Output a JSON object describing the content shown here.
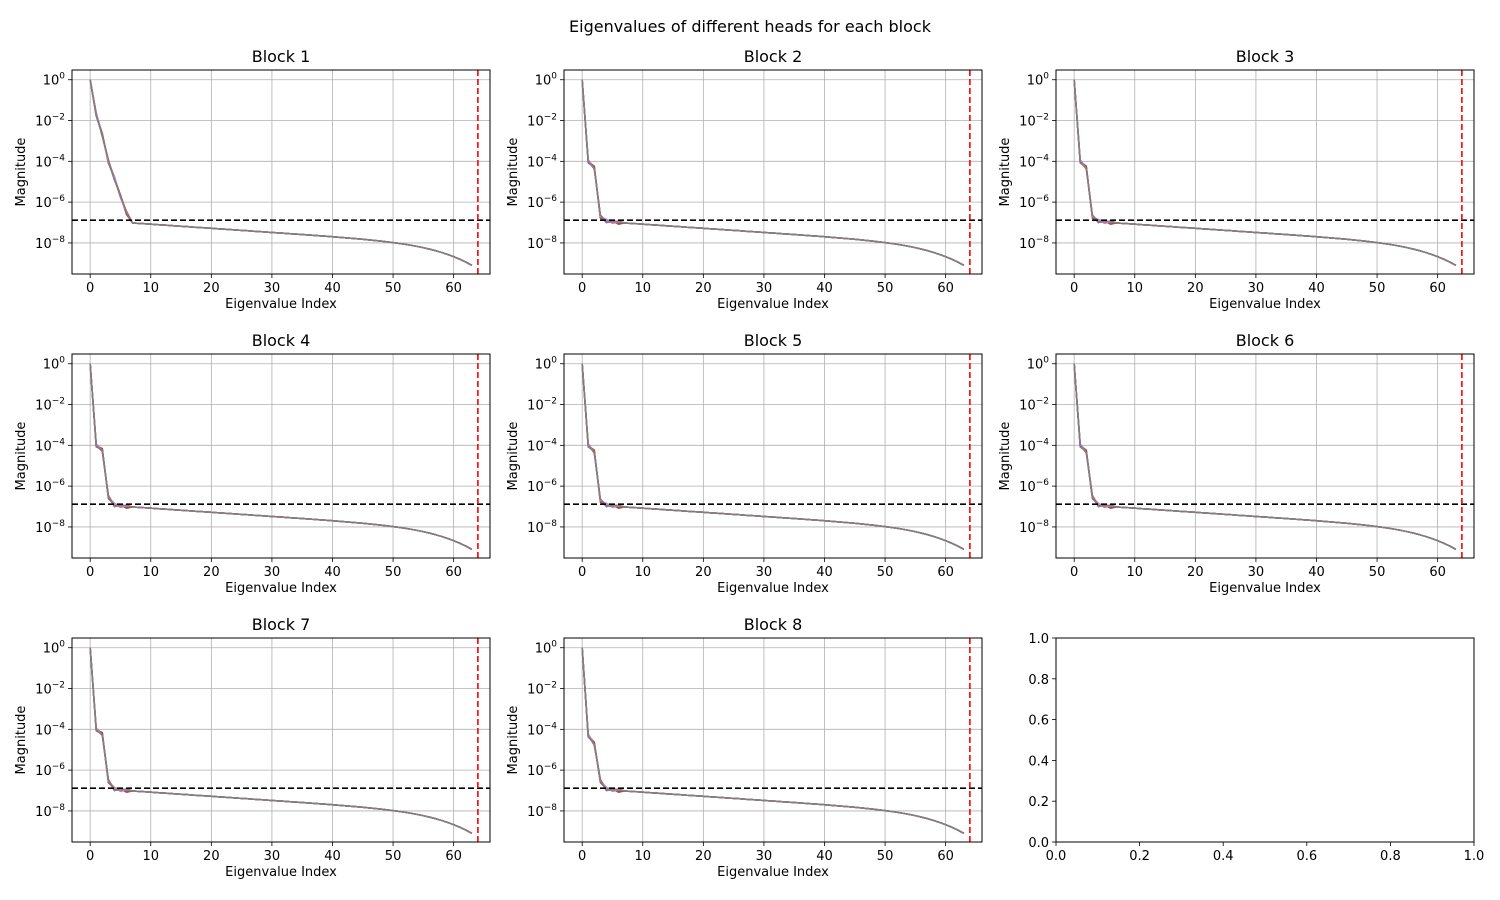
{
  "chart_data": {
    "type": "line",
    "suptitle": "Eigenvalues of different heads for each block",
    "yscale": "log",
    "xlabel": "Eigenvalue Index",
    "ylabel": "Magnitude",
    "xlim": [
      -3,
      66
    ],
    "ylim": [
      3e-10,
      3
    ],
    "x_ticks": [
      0,
      10,
      20,
      30,
      40,
      50,
      60
    ],
    "y_ticks": [
      {
        "base": "10",
        "exp": "0",
        "value": 1
      },
      {
        "base": "10",
        "exp": "−2",
        "value": 0.01
      },
      {
        "base": "10",
        "exp": "−4",
        "value": 0.0001
      },
      {
        "base": "10",
        "exp": "−6",
        "value": 1e-06
      },
      {
        "base": "10",
        "exp": "−8",
        "value": 1e-08
      }
    ],
    "grid": true,
    "threshold_y": 1.3e-07,
    "threshold_x": 64,
    "threshold_y_color": "#000000",
    "threshold_x_color": "#ff0000",
    "series_colors": [
      "#1f77b4",
      "#ff7f0e",
      "#2ca02c",
      "#d62728",
      "#9467bd",
      "#8c564b",
      "#e377c2",
      "#7f7f7f"
    ],
    "tail": {
      "start_index": 6,
      "end_index": 63,
      "start_value": 1e-07,
      "end_value": 8e-10
    },
    "blocks": [
      {
        "title": "Block 1",
        "head_start": [
          1,
          0.02,
          0.002,
          0.0001,
          1.5e-05,
          2e-06,
          3e-07
        ]
      },
      {
        "title": "Block 2",
        "head_start": [
          1,
          0.0001,
          5e-05,
          2e-07,
          1.2e-07,
          1.1e-07,
          1e-07
        ]
      },
      {
        "title": "Block 3",
        "head_start": [
          1,
          0.0001,
          5e-05,
          2e-07,
          1.2e-07,
          1.1e-07,
          1e-07
        ]
      },
      {
        "title": "Block 4",
        "head_start": [
          1,
          0.0001,
          6e-05,
          3e-07,
          1.2e-07,
          1.1e-07,
          1e-07
        ]
      },
      {
        "title": "Block 5",
        "head_start": [
          1,
          0.0001,
          5e-05,
          2e-07,
          1.2e-07,
          1.1e-07,
          1e-07
        ]
      },
      {
        "title": "Block 6",
        "head_start": [
          1,
          0.0001,
          5e-05,
          3e-07,
          1.2e-07,
          1.1e-07,
          1e-07
        ]
      },
      {
        "title": "Block 7",
        "head_start": [
          1,
          0.0001,
          6e-05,
          3e-07,
          1.2e-07,
          1.1e-07,
          1e-07
        ]
      },
      {
        "title": "Block 8",
        "head_start": [
          1,
          5e-05,
          2e-05,
          3e-07,
          1.2e-07,
          1.1e-07,
          1e-07
        ]
      }
    ],
    "empty_panel": {
      "x_ticks": [
        "0.0",
        "0.2",
        "0.4",
        "0.6",
        "0.8",
        "1.0"
      ],
      "y_ticks": [
        "0.0",
        "0.2",
        "0.4",
        "0.6",
        "0.8",
        "1.0"
      ],
      "xlim": [
        0,
        1
      ],
      "ylim": [
        0,
        1
      ]
    }
  }
}
